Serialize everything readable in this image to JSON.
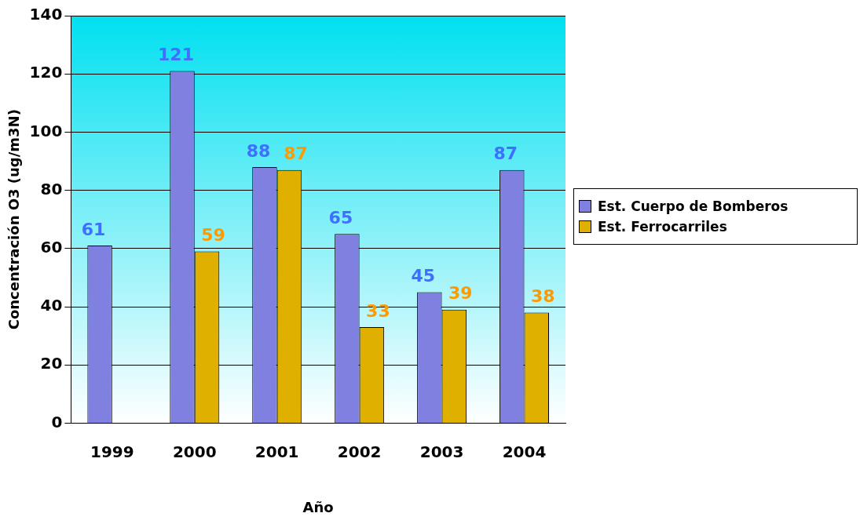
{
  "chart_data": {
    "type": "bar",
    "xlabel": "Año",
    "ylabel": "Concentración O3 (ug/m3N)",
    "categories": [
      "1999",
      "2000",
      "2001",
      "2002",
      "2003",
      "2004"
    ],
    "series": [
      {
        "name": "Est. Cuerpo de Bomberos",
        "color": "#8080e0",
        "values": [
          61,
          121,
          88,
          65,
          45,
          87
        ]
      },
      {
        "name": "Est. Ferrocarriles",
        "color": "#e0b000",
        "values": [
          null,
          59,
          87,
          33,
          39,
          38
        ]
      }
    ],
    "ylim": [
      0,
      140
    ],
    "yticks": [
      0,
      20,
      40,
      60,
      80,
      100,
      120,
      140
    ],
    "grid": "y",
    "legend": "right",
    "data_labels": true
  }
}
